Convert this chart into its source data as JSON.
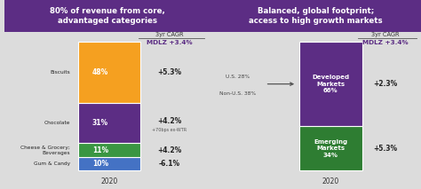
{
  "left_title": "80% of revenue from core,\nadvantaged categories",
  "right_title": "Balanced, global footprint;\naccess to high growth markets",
  "bg_color": "#dcdcdc",
  "header_color": "#5c2d84",
  "left_bars": {
    "categories": [
      "Biscuits",
      "Chocolate",
      "Cheese & Grocery;\nBeverages",
      "Gum & Candy"
    ],
    "values": [
      48,
      31,
      11,
      10
    ],
    "colors": [
      "#f5a020",
      "#5c2d84",
      "#3a9642",
      "#4472c4"
    ],
    "cagr": [
      "+5.3%",
      "+4.2%",
      "+4.2%",
      "-6.1%"
    ],
    "cagr2": [
      "",
      "+70bps ex-WTR",
      "",
      ""
    ]
  },
  "right_bars": {
    "categories": [
      "Developed\nMarkets\n66%",
      "Emerging\nMarkets\n34%"
    ],
    "values": [
      66,
      34
    ],
    "colors": [
      "#5c2d84",
      "#2e7d32"
    ],
    "cagr": [
      "+2.3%",
      "+5.3%"
    ]
  },
  "cagr_label": "3yr CAGR",
  "cagr_mdlz": "MDLZ +3.4%",
  "mdlz_color": "#5c2d84",
  "year_label": "2020",
  "us_line1": "U.S. 28%",
  "us_line2": "Non-U.S. 38%"
}
